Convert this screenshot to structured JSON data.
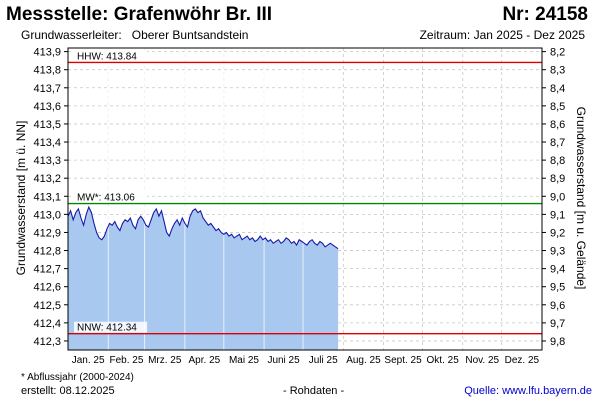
{
  "header": {
    "station_title": "Messstelle: Grafenwöhr Br. III",
    "station_number": "Nr: 24158",
    "aquifer_label": "Grundwasserleiter:",
    "aquifer_value": "Oberer Buntsandstein",
    "period": "Zeitraum: Jan 2025 - Dez 2025"
  },
  "footer": {
    "footnote": "* Abflussjahr (2000-2024)",
    "created": "erstellt:  08.12.2025",
    "raw_data": "- Rohdaten -",
    "source": "Quelle:  www.lfu.bayern.de"
  },
  "colors": {
    "area_fill": "#a9c8f0",
    "series_line": "#1a1aa8",
    "hhw_line": "#dd0000",
    "nnw_line": "#dd0000",
    "mw_line": "#008800",
    "grid": "#c8c8c8"
  },
  "chart_data": {
    "type": "area",
    "title": "Messstelle: Grafenwöhr Br. III",
    "ylabel": "Grundwasserstand [m ü. NN]",
    "y2label": "Grundwasserstand [m u. Gelände]",
    "ylim": [
      412.25,
      413.92
    ],
    "y2_offset_reference": 422.2,
    "yticks": [
      413.9,
      413.8,
      413.7,
      413.6,
      413.5,
      413.4,
      413.3,
      413.2,
      413.1,
      413.0,
      412.9,
      412.8,
      412.7,
      412.6,
      412.5,
      412.4,
      412.3
    ],
    "ytick_labels": [
      "413,9",
      "413,8",
      "413,7",
      "413,6",
      "413,5",
      "413,4",
      "413,3",
      "413,2",
      "413,1",
      "413,0",
      "412,9",
      "412,8",
      "412,7",
      "412,6",
      "412,5",
      "412,4",
      "412,3"
    ],
    "y2tick_labels": [
      "8,2",
      "8,3",
      "8,4",
      "8,5",
      "8,6",
      "8,7",
      "8,8",
      "8,9",
      "9,0",
      "9,1",
      "9,2",
      "9,3",
      "9,4",
      "9,5",
      "9,6",
      "9,7",
      "9,8"
    ],
    "xlim": [
      "2025-01-01",
      "2025-12-31"
    ],
    "month_labels": [
      "Jan. 25",
      "Feb. 25",
      "Mrz. 25",
      "Apr. 25",
      "Mai 25",
      "Juni 25",
      "Juli 25",
      "Aug. 25",
      "Sept. 25",
      "Okt. 25",
      "Nov. 25",
      "Dez. 25"
    ],
    "grid": true,
    "reference_lines": [
      {
        "label": "HHW: 413.84",
        "value": 413.84,
        "color": "#dd0000"
      },
      {
        "label": "MW*: 413.06",
        "value": 413.06,
        "color": "#008800"
      },
      {
        "label": "NNW: 412.34",
        "value": 412.34,
        "color": "#dd0000"
      }
    ],
    "series": [
      {
        "x": [
          "2025-01-01",
          "2025-01-03",
          "2025-01-05",
          "2025-01-07",
          "2025-01-09",
          "2025-01-11",
          "2025-01-13",
          "2025-01-15",
          "2025-01-17",
          "2025-01-19",
          "2025-01-21",
          "2025-01-23",
          "2025-01-25",
          "2025-01-27",
          "2025-01-29",
          "2025-01-31",
          "2025-02-02",
          "2025-02-04",
          "2025-02-06",
          "2025-02-08",
          "2025-02-10",
          "2025-02-12",
          "2025-02-14",
          "2025-02-16",
          "2025-02-18",
          "2025-02-20",
          "2025-02-22",
          "2025-02-24",
          "2025-02-26",
          "2025-02-28",
          "2025-03-02",
          "2025-03-04",
          "2025-03-06",
          "2025-03-08",
          "2025-03-10",
          "2025-03-12",
          "2025-03-14",
          "2025-03-16",
          "2025-03-18",
          "2025-03-20",
          "2025-03-22",
          "2025-03-24",
          "2025-03-26",
          "2025-03-28",
          "2025-03-30",
          "2025-04-01",
          "2025-04-03",
          "2025-04-05",
          "2025-04-07",
          "2025-04-09",
          "2025-04-11",
          "2025-04-13",
          "2025-04-15",
          "2025-04-17",
          "2025-04-19",
          "2025-04-21",
          "2025-04-23",
          "2025-04-25",
          "2025-04-27",
          "2025-04-29",
          "2025-05-01",
          "2025-05-03",
          "2025-05-05",
          "2025-05-07",
          "2025-05-09",
          "2025-05-11",
          "2025-05-13",
          "2025-05-15",
          "2025-05-17",
          "2025-05-19",
          "2025-05-21",
          "2025-05-23",
          "2025-05-25",
          "2025-05-27",
          "2025-05-29",
          "2025-05-31",
          "2025-06-02",
          "2025-06-04",
          "2025-06-06",
          "2025-06-08",
          "2025-06-10",
          "2025-06-12",
          "2025-06-14",
          "2025-06-16",
          "2025-06-18",
          "2025-06-20",
          "2025-06-22",
          "2025-06-24",
          "2025-06-26",
          "2025-06-28",
          "2025-06-30",
          "2025-07-02",
          "2025-07-04",
          "2025-07-06",
          "2025-07-08",
          "2025-07-10",
          "2025-07-12",
          "2025-07-14",
          "2025-07-16",
          "2025-07-18",
          "2025-07-20",
          "2025-07-22",
          "2025-07-24",
          "2025-07-26",
          "2025-07-28"
        ],
        "values": [
          412.99,
          413.02,
          412.97,
          413.01,
          413.03,
          412.98,
          412.94,
          413.0,
          413.04,
          413.01,
          412.95,
          412.9,
          412.87,
          412.86,
          412.88,
          412.92,
          412.95,
          412.94,
          412.96,
          412.93,
          412.91,
          412.95,
          412.97,
          412.96,
          412.98,
          412.94,
          412.92,
          412.97,
          412.99,
          412.97,
          412.94,
          412.93,
          412.97,
          413.01,
          413.03,
          412.99,
          413.02,
          412.96,
          412.9,
          412.88,
          412.92,
          412.95,
          412.97,
          412.94,
          412.98,
          412.95,
          412.93,
          412.99,
          413.02,
          413.03,
          413.01,
          413.02,
          412.98,
          412.96,
          412.94,
          412.95,
          412.93,
          412.91,
          412.92,
          412.9,
          412.89,
          412.9,
          412.88,
          412.89,
          412.87,
          412.88,
          412.89,
          412.86,
          412.87,
          412.88,
          412.86,
          412.87,
          412.85,
          412.86,
          412.88,
          412.86,
          412.87,
          412.85,
          412.86,
          412.84,
          412.85,
          412.86,
          412.84,
          412.85,
          412.87,
          412.86,
          412.84,
          412.85,
          412.83,
          412.86,
          412.85,
          412.84,
          412.83,
          412.85,
          412.86,
          412.84,
          412.83,
          412.85,
          412.84,
          412.82,
          412.83,
          412.84,
          412.83,
          412.82,
          412.81
        ]
      }
    ]
  }
}
